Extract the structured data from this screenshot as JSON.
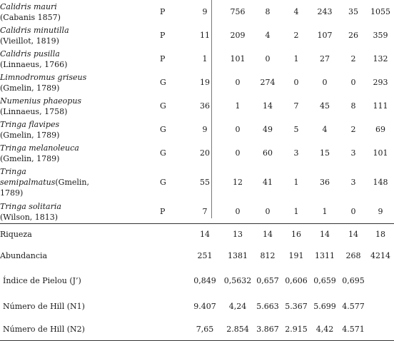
{
  "species": [
    {
      "sci": "Calidris mauri",
      "auth": "(Cabanis 1857)",
      "group": "P",
      "vals": [
        "9",
        "756",
        "8",
        "4",
        "243",
        "35",
        "1055"
      ]
    },
    {
      "sci": "Calidris minutilla",
      "auth": "(Vieillot, 1819)",
      "group": "P",
      "vals": [
        "11",
        "209",
        "4",
        "2",
        "107",
        "26",
        "359"
      ]
    },
    {
      "sci": "Calidris pusilla",
      "auth": "(Linnaeus, 1766)",
      "group": "P",
      "vals": [
        "1",
        "101",
        "0",
        "1",
        "27",
        "2",
        "132"
      ]
    },
    {
      "sci": "Limnodromus griseus",
      "auth": "(Gmelin, 1789)",
      "group": "G",
      "vals": [
        "19",
        "0",
        "274",
        "0",
        "0",
        "0",
        "293"
      ]
    },
    {
      "sci": "Numenius phaeopus",
      "auth": "(Linnaeus, 1758)",
      "group": "G",
      "vals": [
        "36",
        "1",
        "14",
        "7",
        "45",
        "8",
        "111"
      ]
    },
    {
      "sci": "Tringa flavipes",
      "auth": "(Gmelin, 1789)",
      "group": "G",
      "vals": [
        "9",
        "0",
        "49",
        "5",
        "4",
        "2",
        "69"
      ]
    },
    {
      "sci": "Tringa melanoleuca",
      "auth": "(Gmelin, 1789)",
      "group": "G",
      "vals": [
        "20",
        "0",
        "60",
        "3",
        "15",
        "3",
        "101"
      ]
    },
    {
      "sci": "Tringa",
      "sci2": "semipalmatus",
      "auth": "(Gmelin,",
      "auth2": "1789)",
      "group": "G",
      "vals": [
        "55",
        "12",
        "41",
        "1",
        "36",
        "3",
        "148"
      ]
    },
    {
      "sci": "Tringa solitaria",
      "auth": "(Wilson, 1813)",
      "group": "P",
      "vals": [
        "7",
        "0",
        "0",
        "1",
        "1",
        "0",
        "9"
      ]
    }
  ],
  "stats": [
    {
      "label": "Riqueza",
      "vals": [
        "14",
        "13",
        "14",
        "16",
        "14",
        "14",
        "18"
      ]
    },
    {
      "label": "Abundancia",
      "vals": [
        "251",
        "1381",
        "812",
        "191",
        "1311",
        "268",
        "4214"
      ]
    }
  ],
  "indices": [
    {
      "label": "Índice de Pielou (J’)",
      "vals": [
        "0,849",
        "0,5632",
        "0,657",
        "0,606",
        "0,659",
        "0,695",
        ""
      ]
    },
    {
      "label": "Número de Hill (N1)",
      "vals": [
        "9.407",
        "4,24",
        "5.663",
        "5.367",
        "5.699",
        "4.577",
        ""
      ]
    },
    {
      "label": "Número de Hill (N2)",
      "vals": [
        "7,65",
        "2.854",
        "3.867",
        "2.915",
        "4,42",
        "4.571",
        ""
      ]
    }
  ]
}
